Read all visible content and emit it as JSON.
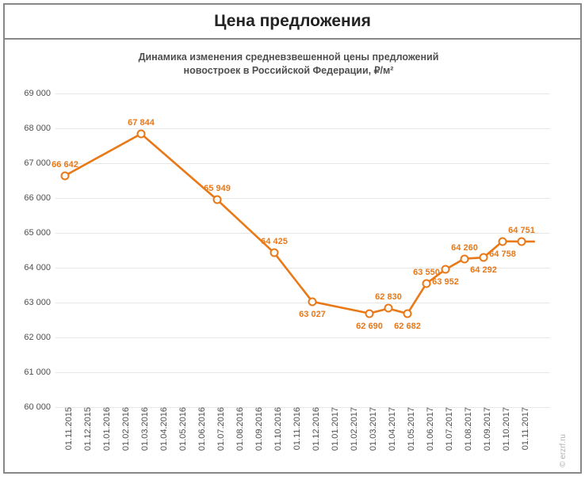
{
  "header": {
    "title": "Цена предложения"
  },
  "chart": {
    "type": "line",
    "subtitle_line1": "Динамика изменения средневзвешенной цены предложений",
    "subtitle_line2": "новостроек в Российской Федерации, ₽/м²",
    "watermark": "© erzrf.ru",
    "line_color": "#e97817",
    "line_width": 2.6,
    "marker_border": "#e97817",
    "marker_fill": "#ffffff",
    "marker_size": 7,
    "grid_color": "#e6e6e6",
    "tick_color": "#4f4f4f",
    "tick_fontsize": 11,
    "datalabel_fontsize": 11,
    "datalabel_color": "#e97817",
    "y": {
      "min": 60000,
      "max": 69000,
      "step": 1000,
      "labels": [
        "60 000",
        "61 000",
        "62 000",
        "63 000",
        "64 000",
        "65 000",
        "66 000",
        "67 000",
        "68 000",
        "69 000"
      ]
    },
    "x": {
      "labels": [
        "01.11.2015",
        "01.12.2015",
        "01.01.2016",
        "01.02.2016",
        "01.03.2016",
        "01.04.2016",
        "01.05.2016",
        "01.06.2016",
        "01.07.2016",
        "01.08.2016",
        "01.09.2016",
        "01.10.2016",
        "01.11.2016",
        "01.12.2016",
        "01.01.2017",
        "01.02.2017",
        "01.03.2017",
        "01.04.2017",
        "01.05.2017",
        "01.06.2017",
        "01.07.2017",
        "01.08.2017",
        "01.09.2017",
        "01.10.2017",
        "01.11.2017"
      ]
    },
    "series": {
      "x_index": [
        1,
        5,
        9,
        12,
        14,
        17,
        18,
        19,
        20,
        21,
        22,
        23,
        24,
        25
      ],
      "y_value": [
        66642,
        67844,
        65949,
        64425,
        63027,
        62690,
        62830,
        62682,
        63550,
        63952,
        64260,
        64292,
        64758,
        64751
      ],
      "label": [
        "66 642",
        "67 844",
        "65 949",
        "64 425",
        "63 027",
        "62 690",
        "62 830",
        "62 682",
        "63 550",
        "63 952",
        "64 260",
        "64 292",
        "64 758",
        "64 751"
      ],
      "label_pos": [
        "above",
        "above",
        "above",
        "above",
        "below",
        "below",
        "above",
        "below",
        "above",
        "below",
        "above",
        "below",
        "below",
        "above"
      ]
    },
    "x_slot_count": 26
  }
}
